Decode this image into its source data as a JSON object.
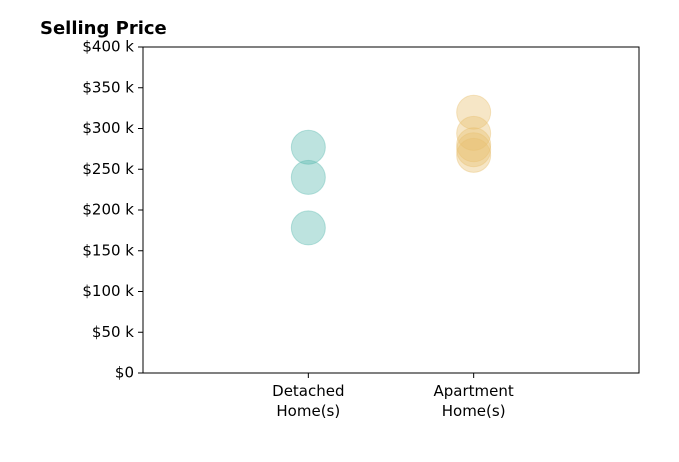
{
  "chart_data": {
    "type": "strip",
    "title": "Selling Price",
    "categories": [
      "Detached\nHome(s)",
      "Apartment\nHome(s)"
    ],
    "values": [
      [
        277000,
        240000,
        178000
      ],
      [
        320000,
        294000,
        280000,
        274000,
        267000
      ]
    ],
    "colors": [
      "#5bb8b0",
      "#e8c170"
    ],
    "alpha": 0.4,
    "ylim": [
      0,
      400000
    ],
    "yticks": [
      {
        "value": 0,
        "label": "$0"
      },
      {
        "value": 50000,
        "label": "$50 k"
      },
      {
        "value": 100000,
        "label": "$100 k"
      },
      {
        "value": 150000,
        "label": "$150 k"
      },
      {
        "value": 200000,
        "label": "$200 k"
      },
      {
        "value": 250000,
        "label": "$250 k"
      },
      {
        "value": 300000,
        "label": "$300 k"
      },
      {
        "value": 350000,
        "label": "$350 k"
      },
      {
        "value": 400000,
        "label": "$400 k"
      }
    ]
  }
}
